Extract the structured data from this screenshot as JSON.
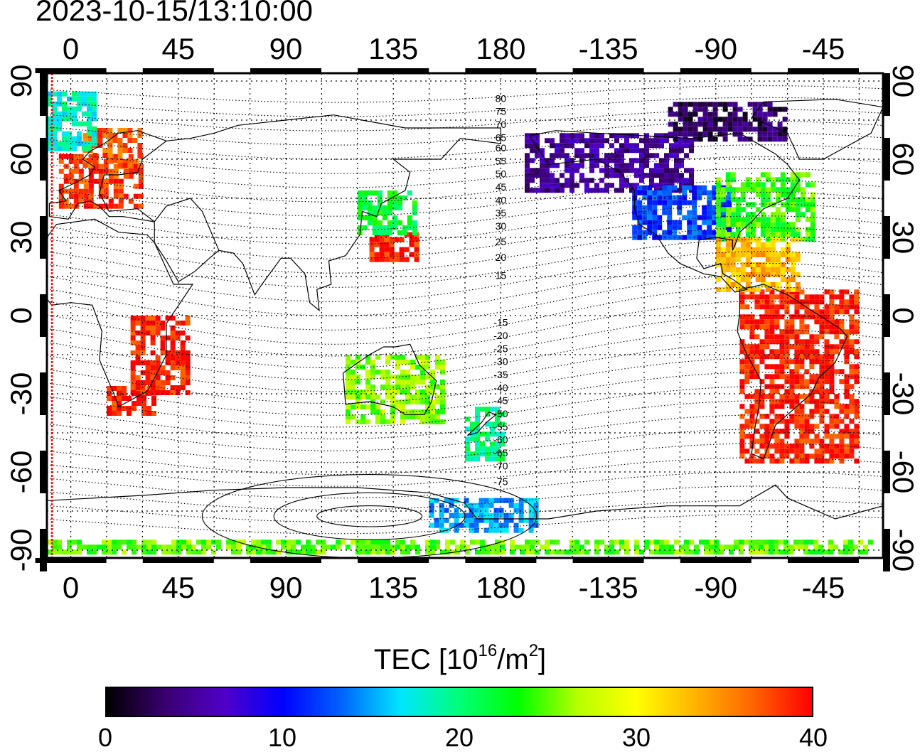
{
  "timestamp": "2023-10-15/13:10:00",
  "map": {
    "lon_ticks_top": [
      "0",
      "45",
      "90",
      "135",
      "180",
      "-135",
      "-90",
      "-45"
    ],
    "lon_ticks_bottom": [
      "0",
      "45",
      "90",
      "135",
      "180",
      "-135",
      "-90",
      "-45"
    ],
    "lat_ticks_left": [
      "90",
      "60",
      "30",
      "0",
      "-30",
      "-60",
      "-90"
    ],
    "lat_ticks_right": [
      "90",
      "60",
      "30",
      "0",
      "-30",
      "-60",
      "-90"
    ],
    "lon_values": [
      0,
      45,
      90,
      135,
      180,
      225,
      270,
      315
    ],
    "lat_values": [
      90,
      60,
      30,
      0,
      -30,
      -60,
      -90
    ],
    "lon_range": [
      -10,
      340
    ],
    "lat_range": [
      -93,
      93
    ],
    "contour_labels": [
      "80",
      "75",
      "70",
      "65",
      "60",
      "55",
      "50",
      "45",
      "40",
      "35",
      "30",
      "25",
      "20",
      "15",
      "-15",
      "-20",
      "-25",
      "-30",
      "-35",
      "-40",
      "-45",
      "-50",
      "-55",
      "-60",
      "-65",
      "-70",
      "-75"
    ],
    "contour_label_lats": [
      82,
      77,
      72,
      67,
      63,
      58,
      53,
      48,
      43,
      38,
      33,
      27,
      21,
      14,
      -4,
      -9,
      -14,
      -19,
      -24,
      -29,
      -34,
      -39,
      -44,
      -49,
      -54,
      -59,
      -65
    ],
    "grid": "dotted",
    "terminator_color": "#ff0000",
    "tec_regions": [
      {
        "name": "europe",
        "lon": [
          -5,
          30
        ],
        "lat": [
          62,
          42
        ],
        "tec": 38
      },
      {
        "name": "scandinavia",
        "lon": [
          5,
          30
        ],
        "lat": [
          72,
          58
        ],
        "tec": 37
      },
      {
        "name": "greenland-east",
        "lon": [
          -10,
          10
        ],
        "lat": [
          86,
          65
        ],
        "tec": 18
      },
      {
        "name": "africa-south",
        "lon": [
          15,
          35
        ],
        "lat": [
          -27,
          -38
        ],
        "tec": 39
      },
      {
        "name": "africa-east",
        "lon": [
          25,
          50
        ],
        "lat": [
          0,
          -30
        ],
        "tec": 39
      },
      {
        "name": "japan",
        "lon": [
          125,
          145
        ],
        "lat": [
          32,
          22
        ],
        "tec": 39
      },
      {
        "name": "china-north",
        "lon": [
          120,
          145
        ],
        "lat": [
          48,
          32
        ],
        "tec": 22
      },
      {
        "name": "north-america-north",
        "lon": [
          190,
          260
        ],
        "lat": [
          70,
          48
        ],
        "tec": 5
      },
      {
        "name": "canada-arctic",
        "lon": [
          250,
          300
        ],
        "lat": [
          82,
          68
        ],
        "tec": 3
      },
      {
        "name": "north-america-central",
        "lon": [
          235,
          275
        ],
        "lat": [
          50,
          30
        ],
        "tec": 12
      },
      {
        "name": "north-america-east",
        "lon": [
          270,
          310
        ],
        "lat": [
          55,
          30
        ],
        "tec": 24
      },
      {
        "name": "south-america",
        "lon": [
          280,
          330
        ],
        "lat": [
          10,
          -55
        ],
        "tec": 39
      },
      {
        "name": "caribbean",
        "lon": [
          270,
          305
        ],
        "lat": [
          30,
          10
        ],
        "tec": 33
      },
      {
        "name": "australia",
        "lon": [
          115,
          155
        ],
        "lat": [
          -15,
          -40
        ],
        "tec": 26
      },
      {
        "name": "new-zealand",
        "lon": [
          165,
          180
        ],
        "lat": [
          -35,
          -55
        ],
        "tec": 20
      },
      {
        "name": "antarctica-pacific",
        "lon": [
          150,
          195
        ],
        "lat": [
          -70,
          -82
        ],
        "tec": 15
      },
      {
        "name": "antarctic-ring",
        "lon": [
          -10,
          335
        ],
        "lat": [
          -86,
          -90
        ],
        "tec": 25
      }
    ]
  },
  "colorbar": {
    "title": "TEC  [10",
    "title_sup": "16",
    "title_mid": "/m",
    "title_sup2": "2",
    "title_end": "]",
    "ticks": [
      "0",
      "10",
      "20",
      "30",
      "40"
    ],
    "min": 0,
    "max": 40,
    "colors": [
      "#000000",
      "#3a0070",
      "#5000c8",
      "#0000ff",
      "#0064ff",
      "#00e6ff",
      "#00ff78",
      "#00ff00",
      "#b4ff00",
      "#ffff00",
      "#ffb400",
      "#ff6400",
      "#ff0000"
    ]
  }
}
